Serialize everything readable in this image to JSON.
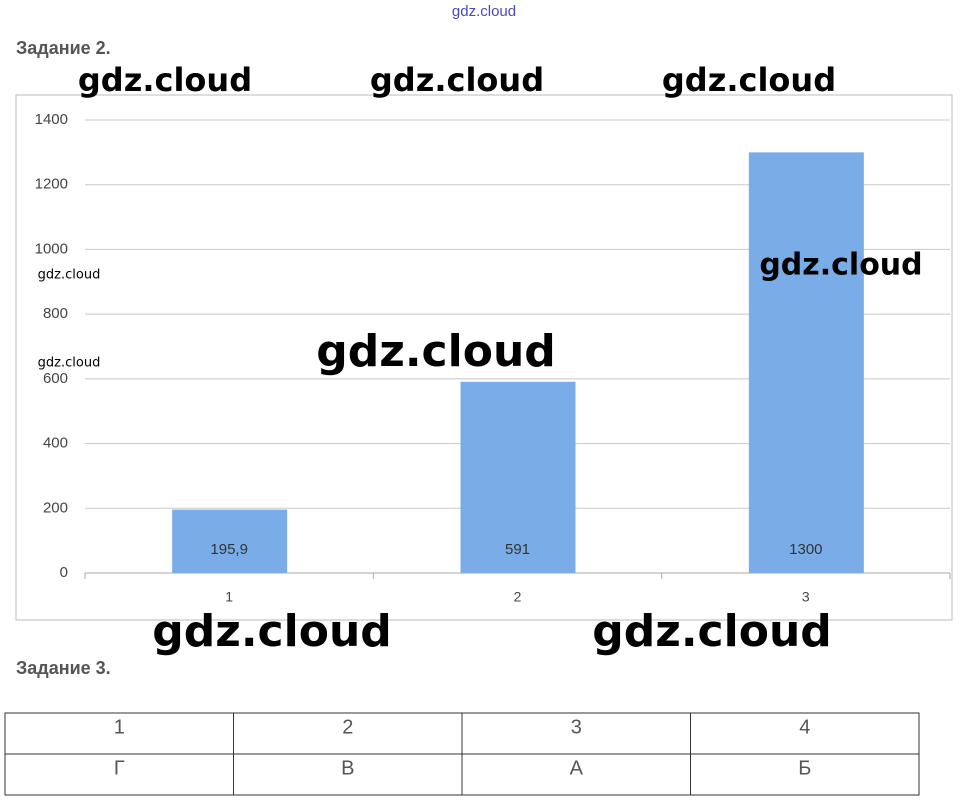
{
  "header": {
    "site": "gdz.cloud"
  },
  "sections": [
    {
      "title": "Задание 2."
    },
    {
      "title": "Задание 3."
    }
  ],
  "chart_data": {
    "type": "bar",
    "categories": [
      "1",
      "2",
      "3"
    ],
    "values": [
      195.9,
      591,
      1300
    ],
    "value_labels": [
      "195,9",
      "591",
      "1300"
    ],
    "color": "#7aade8",
    "ylim": [
      0,
      1400
    ],
    "yticks": [
      0,
      200,
      400,
      600,
      800,
      1000,
      1200,
      1400
    ],
    "grid": true
  },
  "table": {
    "rows": [
      [
        "1",
        "2",
        "3",
        "4"
      ],
      [
        "Г",
        "В",
        "А",
        "Б"
      ]
    ]
  },
  "watermarks": [
    "gdz.cloud",
    "gdz.cloud",
    "gdz.cloud",
    "gdz.cloud",
    "gdz.cloud",
    "gdz.cloud",
    "gdz.cloud",
    "gdz.cloud",
    "gdz.cloud"
  ]
}
